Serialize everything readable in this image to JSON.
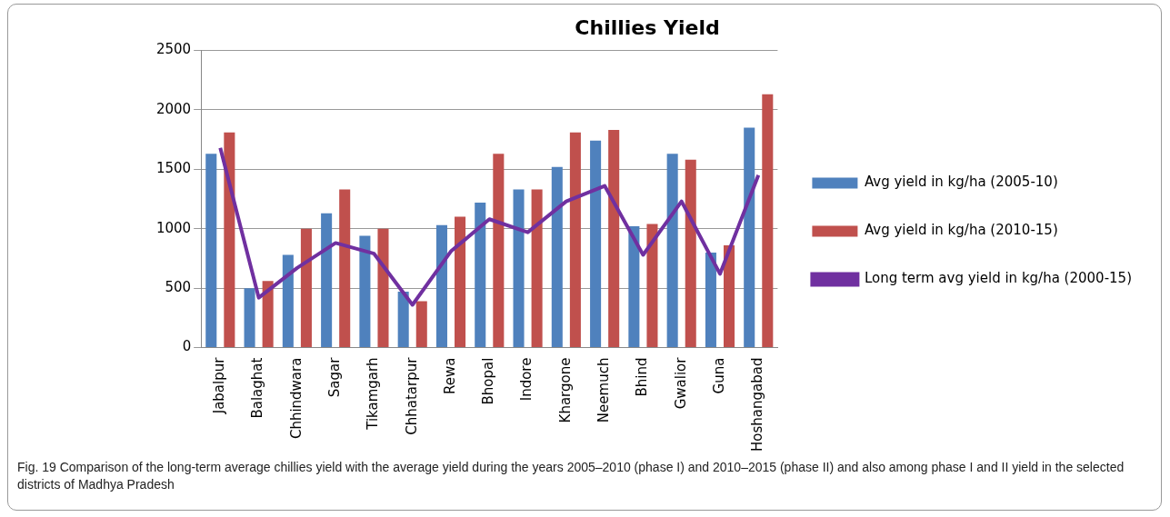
{
  "chart_data": {
    "type": "bar",
    "title": "Chillies Yield",
    "categories": [
      "Jabalpur",
      "Balaghat",
      "Chhindwara",
      "Sagar",
      "Tikamgarh",
      "Chhatarpur",
      "Rewa",
      "Bhopal",
      "Indore",
      "Khargone",
      "Neemuch",
      "Bhind",
      "Gwalior",
      "Guna",
      "Hoshangabad"
    ],
    "series": [
      {
        "name": "Avg yield in kg/ha (2005-10)",
        "color": "#4f81bd",
        "values": [
          1630,
          500,
          780,
          1130,
          940,
          470,
          1030,
          1220,
          1330,
          1520,
          1740,
          1020,
          1630,
          800,
          1850
        ]
      },
      {
        "name": "Avg yield in kg/ha (2010-15)",
        "color": "#c0504d",
        "values": [
          1810,
          560,
          1000,
          1330,
          1000,
          390,
          1100,
          1630,
          1330,
          1810,
          1830,
          1040,
          1580,
          860,
          2130
        ]
      },
      {
        "name": "Long term avg yield in kg/ha (2000-15)",
        "color": "#7030a0",
        "type": "line",
        "values": [
          1680,
          420,
          670,
          880,
          790,
          360,
          810,
          1080,
          970,
          1230,
          1360,
          780,
          1230,
          620,
          1450
        ]
      }
    ],
    "ylim": [
      0,
      2500
    ],
    "yticks": [
      0,
      500,
      1000,
      1500,
      2000,
      2500
    ],
    "grid": "y",
    "legend": "right",
    "marker": "none",
    "annotations": [
      "Fig. 19 Comparison of the long-term average chillies yield with the average yield during the years 2005–2010 (phase I) and 2010–2015 (phase II) and also among phase I and II yield in the selected districts of Madhya Pradesh"
    ]
  }
}
